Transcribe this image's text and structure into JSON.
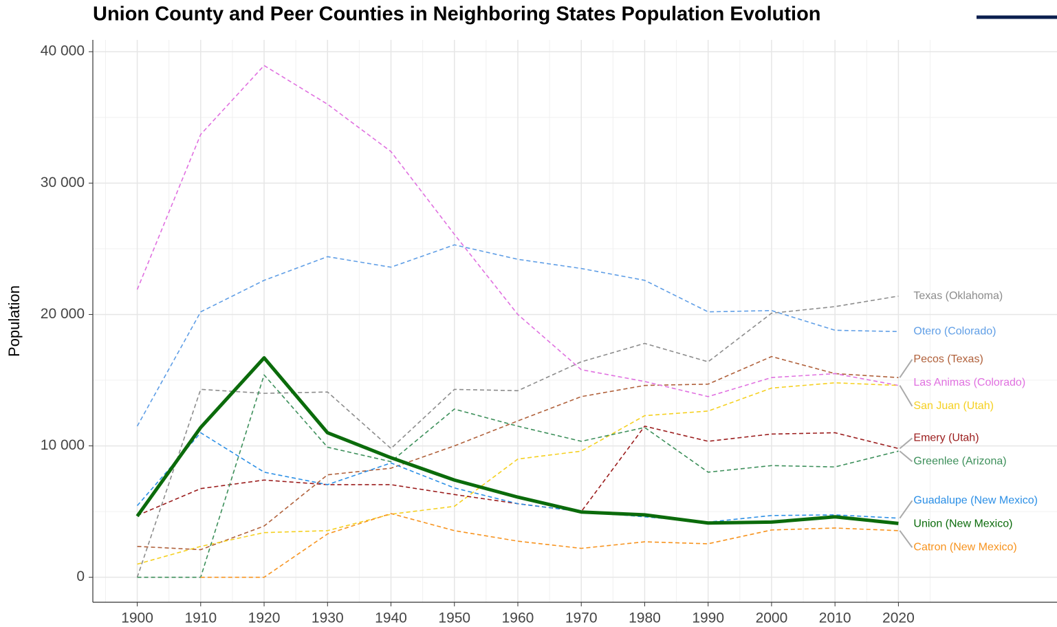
{
  "chart_data": {
    "type": "line",
    "title": "Union County and Peer Counties in Neighboring States Population Evolution",
    "y_label": "Population",
    "x": [
      1900,
      1910,
      1920,
      1930,
      1940,
      1950,
      1960,
      1970,
      1980,
      1990,
      2000,
      2010,
      2020
    ],
    "xlim": [
      1893,
      2045
    ],
    "xticks": [
      1900,
      1910,
      1920,
      1930,
      1940,
      1950,
      1960,
      1970,
      1980,
      1990,
      2000,
      2010,
      2020
    ],
    "ylim": [
      -1900,
      40900
    ],
    "yticks": [
      0,
      {
        "value": 10000,
        "label": "10 000"
      },
      {
        "value": 20000,
        "label": "20 000"
      },
      {
        "value": 30000,
        "label": "30 000"
      },
      {
        "value": 40000,
        "label": "40 000"
      }
    ],
    "grid": true,
    "minor_grid": true,
    "legend": "end-labels",
    "series": [
      {
        "name": "Texas (Oklahoma)",
        "color": "#8c8c8c",
        "dash": true,
        "values": [
          0,
          14300,
          14000,
          14100,
          9800,
          14300,
          14200,
          16400,
          17800,
          16400,
          20100,
          20600,
          21400
        ]
      },
      {
        "name": "Otero (Colorado)",
        "color": "#5f9ee6",
        "dash": true,
        "values": [
          11500,
          20200,
          22600,
          24400,
          23600,
          25300,
          24200,
          23500,
          22600,
          20200,
          20300,
          18800,
          18700
        ]
      },
      {
        "name": "Pecos (Texas)",
        "color": "#b0603a",
        "dash": true,
        "values": [
          2350,
          2100,
          3900,
          7800,
          8300,
          10000,
          11900,
          13750,
          14600,
          14700,
          16800,
          15500,
          15200
        ]
      },
      {
        "name": "Las Animas (Colorado)",
        "color": "#e070e0",
        "dash": true,
        "values": [
          21900,
          33700,
          38950,
          36000,
          32400,
          26100,
          20000,
          15800,
          14900,
          13750,
          15200,
          15500,
          14600
        ]
      },
      {
        "name": "San Juan (Utah)",
        "color": "#f5d020",
        "dash": true,
        "values": [
          1000,
          2350,
          3400,
          3550,
          4800,
          5400,
          9000,
          9600,
          12300,
          12650,
          14400,
          14800,
          14600
        ]
      },
      {
        "name": "Emery (Utah)",
        "color": "#9b1c1c",
        "dash": true,
        "values": [
          4700,
          6750,
          7400,
          7050,
          7050,
          6300,
          5600,
          5000,
          11500,
          10350,
          10900,
          11000,
          9800
        ]
      },
      {
        "name": "Greenlee (Arizona)",
        "color": "#3c8f5a",
        "dash": true,
        "values": [
          0,
          0,
          15400,
          9900,
          8800,
          12800,
          11500,
          10350,
          11400,
          8000,
          8500,
          8400,
          9600
        ]
      },
      {
        "name": "Guadalupe (New Mexico)",
        "color": "#2b8fe6",
        "dash": true,
        "values": [
          5450,
          11000,
          8000,
          7050,
          8700,
          6800,
          5600,
          5000,
          4600,
          4200,
          4700,
          4750,
          4500
        ]
      },
      {
        "name": "Union (New Mexico)",
        "color": "#0b6b0b",
        "dash": false,
        "values": [
          4650,
          11400,
          16700,
          11000,
          9100,
          7400,
          6100,
          4970,
          4750,
          4130,
          4200,
          4600,
          4100
        ]
      },
      {
        "name": "Catron (New Mexico)",
        "color": "#f7931e",
        "dash": true,
        "values": [
          null,
          0,
          0,
          3300,
          4850,
          3550,
          2750,
          2200,
          2700,
          2550,
          3600,
          3750,
          3550
        ]
      }
    ]
  }
}
